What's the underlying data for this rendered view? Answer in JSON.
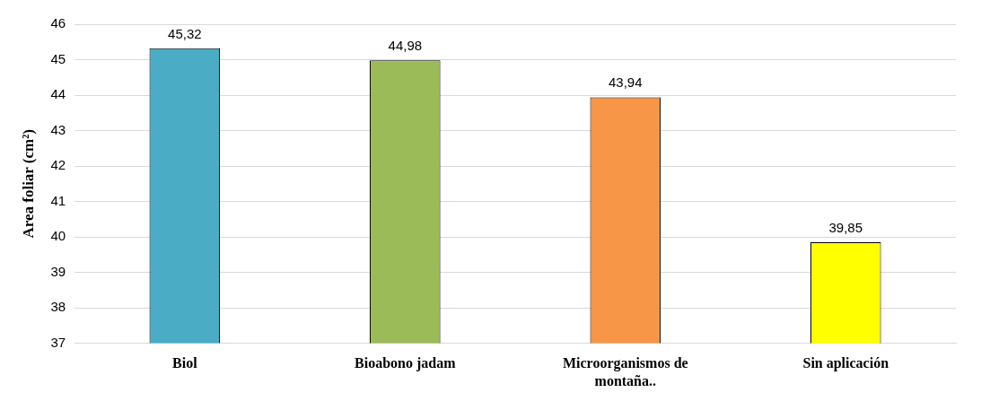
{
  "chart_data": {
    "type": "bar",
    "ylabel": "Area foliar (cm²)",
    "categories": [
      "Biol",
      "Bioabono jadam",
      "Microorganismos de montaña..",
      "Sin aplicación"
    ],
    "values": [
      45.32,
      44.98,
      43.94,
      39.85
    ],
    "colors": [
      "#4bacc6",
      "#9bbb59",
      "#f79646",
      "#ffff00"
    ],
    "value_labels": [
      "45,32",
      "44,98",
      "43,94",
      "39,85"
    ],
    "ylim": [
      37,
      46
    ],
    "yticks": [
      37,
      38,
      39,
      40,
      41,
      42,
      43,
      44,
      45,
      46
    ],
    "grid": "y",
    "legend": false
  }
}
